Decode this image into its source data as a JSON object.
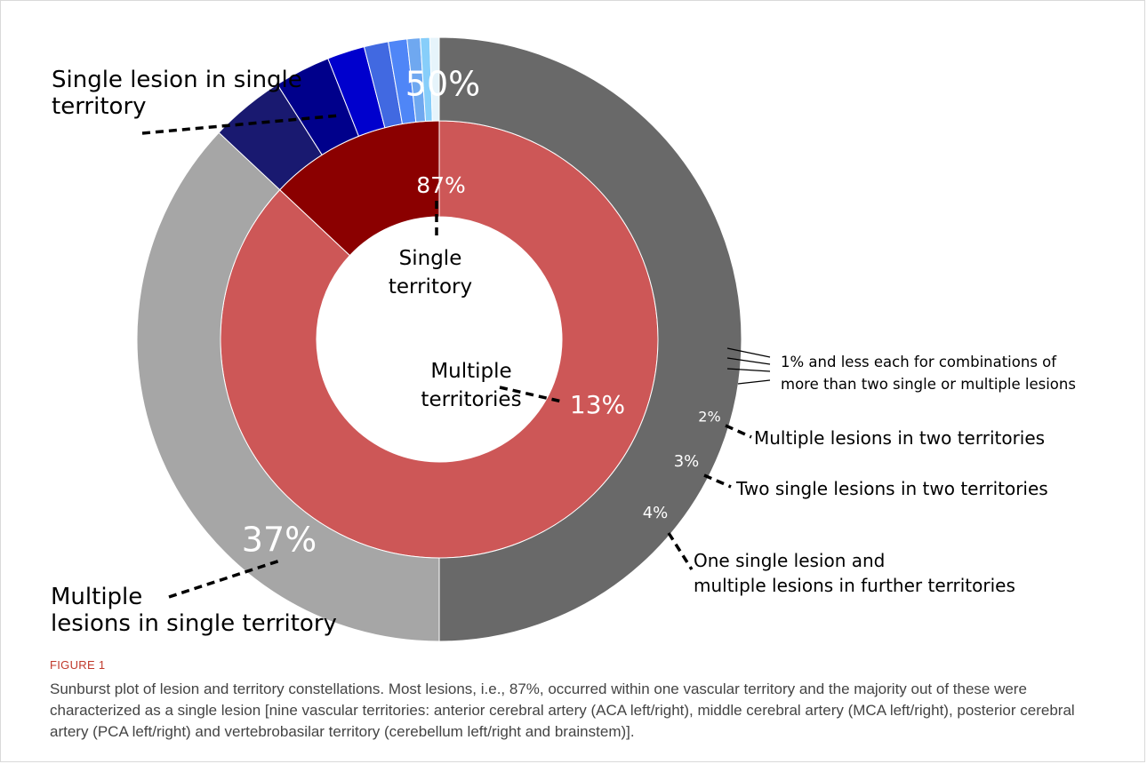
{
  "figure": {
    "label": "FIGURE 1",
    "caption": "Sunburst plot of lesion and territory constellations. Most lesions, i.e., 87%, occurred within one vascular territory and the majority out of these were characterized as a single lesion [nine vascular territories: anterior cerebral artery (ACA left/right), middle cerebral artery (MCA left/right), posterior cerebral artery (PCA left/right) and vertebrobasilar territory (cerebellum left/right and brainstem)]."
  },
  "chart_data": {
    "type": "sunburst",
    "inner_ring": [
      {
        "name": "Single territory",
        "label": "87%",
        "value": 87,
        "color": "#cd5757",
        "label_color": "#ffffff"
      },
      {
        "name": "Multiple territories",
        "label": "13%",
        "value": 13,
        "color": "#8b0000",
        "label_color": "#ffffff"
      }
    ],
    "outer_ring": [
      {
        "name": "Single lesion in single territory",
        "parent": "Single territory",
        "label": "50%",
        "value": 50,
        "color": "#696969",
        "label_color": "#ffffff"
      },
      {
        "name": "Multiple lesions in single territory",
        "parent": "Single territory",
        "label": "37%",
        "value": 37,
        "color": "#a6a6a6",
        "label_color": "#ffffff"
      },
      {
        "name": "One single lesion and multiple lesions in further territories",
        "parent": "Multiple territories",
        "label": "4%",
        "value": 4,
        "color": "#191970",
        "label_color": "#ffffff"
      },
      {
        "name": "Two single lesions in two territories",
        "parent": "Multiple territories",
        "label": "3%",
        "value": 3,
        "color": "#00008b",
        "label_color": "#ffffff"
      },
      {
        "name": "Multiple lesions in two territories",
        "parent": "Multiple territories",
        "label": "2%",
        "value": 2,
        "color": "#0000cd",
        "label_color": "#ffffff"
      },
      {
        "name": "",
        "parent": "Multiple territories",
        "label": "",
        "value": 1.3,
        "color": "#4169e1",
        "label_color": "#ffffff"
      },
      {
        "name": "",
        "parent": "Multiple territories",
        "label": "",
        "value": 1,
        "color": "#4f86f7",
        "label_color": "#ffffff"
      },
      {
        "name": "",
        "parent": "Multiple territories",
        "label": "",
        "value": 0.7,
        "color": "#6fa8f0",
        "label_color": "#ffffff"
      },
      {
        "name": "",
        "parent": "Multiple territories",
        "label": "",
        "value": 0.5,
        "color": "#87cefa",
        "label_color": "#ffffff"
      },
      {
        "name": "",
        "parent": "Multiple territories",
        "label": "",
        "value": 0.5,
        "color": "#e6f4fb",
        "label_color": "#ffffff"
      }
    ],
    "annotations": {
      "single_lesion_single_territory": [
        "Single lesion in single",
        "territory"
      ],
      "multiple_lesions_single_territory": [
        "Multiple",
        "lesions in single territory"
      ],
      "single_territory": [
        "Single",
        "territory"
      ],
      "multiple_territories": [
        "Multiple",
        "territories"
      ],
      "small_combinations": [
        "1% and less each for combinations of",
        "more than two single or multiple lesions"
      ],
      "multiple_lesions_two_territories": [
        "Multiple lesions in two territories"
      ],
      "two_single_lesions": [
        "Two single lesions in two territories"
      ],
      "one_single_lesion_further": [
        "One single lesion and",
        "multiple lesions in further territories"
      ]
    }
  }
}
